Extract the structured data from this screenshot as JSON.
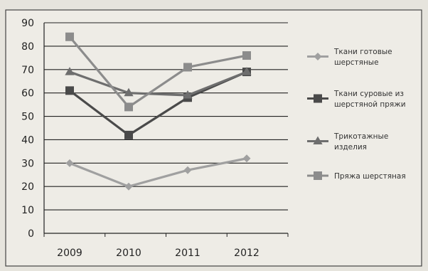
{
  "chart_data": {
    "type": "line",
    "title": "",
    "xlabel": "",
    "ylabel": "",
    "x": [
      "2009",
      "2010",
      "2011",
      "2012"
    ],
    "ylim": [
      0,
      90
    ],
    "yticks": [
      "0",
      "10",
      "20",
      "30",
      "40",
      "50",
      "60",
      "70",
      "80",
      "90"
    ],
    "grid": true,
    "legend_position": "right",
    "series": [
      {
        "name_lines": [
          "Ткани готовые",
          "шерстяные"
        ],
        "values": [
          30,
          20,
          27,
          32
        ],
        "color": "#a0a0a0",
        "marker": "diamond"
      },
      {
        "name_lines": [
          "Ткани суровые из",
          "шерстяной пряжи"
        ],
        "values": [
          61,
          42,
          58,
          69
        ],
        "color": "#4a4a4a",
        "marker": "square"
      },
      {
        "name_lines": [
          "Трикотажные",
          "изделия"
        ],
        "values": [
          69,
          60,
          59,
          69
        ],
        "color": "#6e6e6e",
        "marker": "triangle"
      },
      {
        "name_lines": [
          "Пряжа шерстяная"
        ],
        "values": [
          84,
          54,
          71,
          76
        ],
        "color": "#8c8c8c",
        "marker": "square"
      }
    ]
  },
  "colors": {
    "background": "#e6e4dd",
    "plot_background": "#eeece6",
    "gridline": "#222222",
    "border": "#444444"
  }
}
